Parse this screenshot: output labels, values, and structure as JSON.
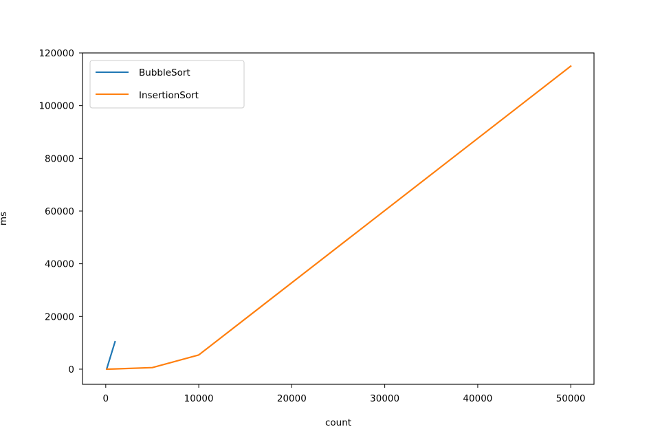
{
  "chart_data": {
    "type": "line",
    "title": "",
    "xlabel": "count",
    "ylabel": "ms",
    "xlim": [
      -2500,
      52500
    ],
    "ylim": [
      -5750,
      120000
    ],
    "xticks": [
      0,
      10000,
      20000,
      30000,
      40000,
      50000
    ],
    "xtick_labels": [
      "0",
      "10000",
      "20000",
      "30000",
      "40000",
      "50000"
    ],
    "yticks": [
      0,
      20000,
      40000,
      60000,
      80000,
      100000,
      120000
    ],
    "ytick_labels": [
      "0",
      "20000",
      "40000",
      "60000",
      "80000",
      "100000",
      "120000"
    ],
    "grid": false,
    "legend_position": "top-left",
    "series": [
      {
        "name": "BubbleSort",
        "color": "#1f77b4",
        "x": [
          100,
          1000
        ],
        "y": [
          100,
          10400
        ]
      },
      {
        "name": "InsertionSort",
        "color": "#ff7f0e",
        "x": [
          100,
          1000,
          5000,
          10000,
          50000
        ],
        "y": [
          0,
          100,
          600,
          5400,
          115000
        ]
      }
    ]
  }
}
